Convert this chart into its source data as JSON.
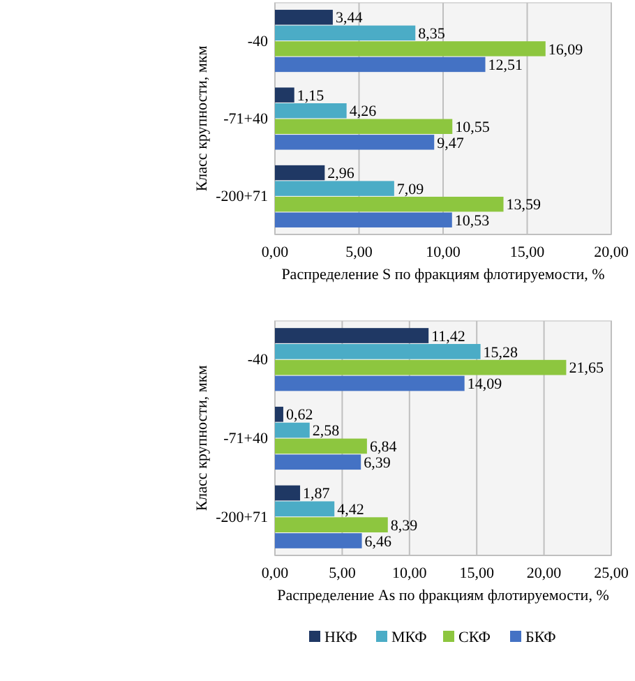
{
  "chart_data": [
    {
      "type": "bar",
      "orientation": "horizontal",
      "xlabel": "Распределение S по фракциям флотируемости, %",
      "ylabel": "Класс крупности, мкм",
      "categories": [
        "-40",
        "-71+40",
        "-200+71"
      ],
      "series": [
        {
          "color": "#1f3864",
          "values": [
            3.44,
            1.15,
            2.96
          ],
          "value_labels": [
            "3,44",
            "1,15",
            "2,96"
          ]
        },
        {
          "color": "#4bacc6",
          "values": [
            8.35,
            4.26,
            7.09
          ],
          "value_labels": [
            "8,35",
            "4,26",
            "7,09"
          ]
        },
        {
          "color": "#8dc63f",
          "values": [
            16.09,
            10.55,
            13.59
          ],
          "value_labels": [
            "16,09",
            "10,55",
            "13,59"
          ]
        },
        {
          "color": "#4472c4",
          "values": [
            12.51,
            9.47,
            10.53
          ],
          "value_labels": [
            "12,51",
            "9,47",
            "10,53"
          ]
        }
      ],
      "xlim": [
        0,
        20
      ],
      "xticks": [
        {
          "value": 0,
          "label": "0,00"
        },
        {
          "value": 5,
          "label": "5,00"
        },
        {
          "value": 10,
          "label": "10,00"
        },
        {
          "value": 15,
          "label": "15,00"
        },
        {
          "value": 20,
          "label": "20,00"
        }
      ],
      "grid": "x",
      "legend": false
    },
    {
      "type": "bar",
      "orientation": "horizontal",
      "xlabel": "Распределение As по фракциям флотируемости, %",
      "ylabel": "Класс крупности, мкм",
      "categories": [
        "-40",
        "-71+40",
        "-200+71"
      ],
      "series": [
        {
          "name": "НКФ",
          "color": "#1f3864",
          "values": [
            11.42,
            0.62,
            1.87
          ],
          "value_labels": [
            "11,42",
            "0,62",
            "1,87"
          ]
        },
        {
          "name": "МКФ",
          "color": "#4bacc6",
          "values": [
            15.28,
            2.58,
            4.42
          ],
          "value_labels": [
            "15,28",
            "2,58",
            "4,42"
          ]
        },
        {
          "name": "СКФ",
          "color": "#8dc63f",
          "values": [
            21.65,
            6.84,
            8.39
          ],
          "value_labels": [
            "21,65",
            "6,84",
            "8,39"
          ]
        },
        {
          "name": "БКФ",
          "color": "#4472c4",
          "values": [
            14.09,
            6.39,
            6.46
          ],
          "value_labels": [
            "14,09",
            "6,39",
            "6,46"
          ]
        }
      ],
      "xlim": [
        0,
        25
      ],
      "xticks": [
        {
          "value": 0,
          "label": "0,00"
        },
        {
          "value": 5,
          "label": "5,00"
        },
        {
          "value": 10,
          "label": "10,00"
        },
        {
          "value": 15,
          "label": "15,00"
        },
        {
          "value": 20,
          "label": "20,00"
        },
        {
          "value": 25,
          "label": "25,00"
        }
      ],
      "grid": "x",
      "legend": "bottom"
    }
  ]
}
